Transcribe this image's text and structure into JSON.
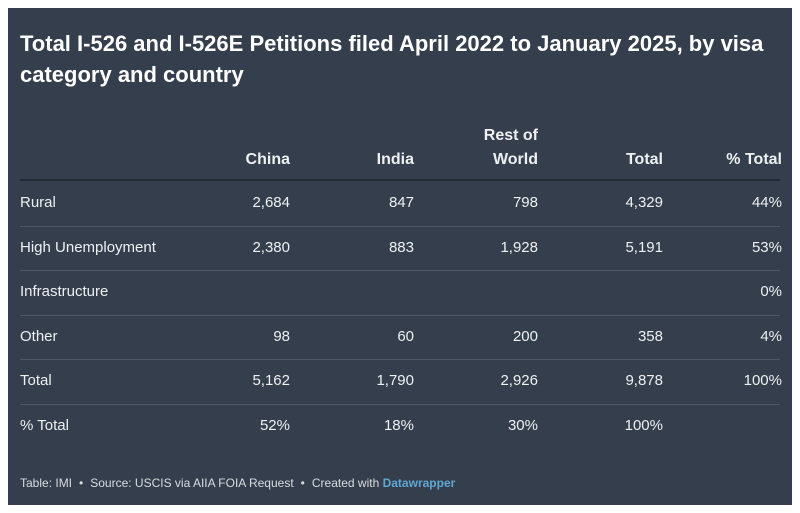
{
  "title": "Total I-526 and I-526E Petitions filed April 2022 to January 2025, by visa category and country",
  "table": {
    "header": [
      "China",
      "India",
      "Rest of World",
      "Total",
      "% Total"
    ],
    "rows": [
      [
        "Rural",
        "2,684",
        "847",
        "798",
        "4,329",
        "44%"
      ],
      [
        "High Unemployment",
        "2,380",
        "883",
        "1,928",
        "5,191",
        "53%"
      ],
      [
        "Infrastructure",
        null,
        null,
        null,
        null,
        "0%"
      ],
      [
        "Other",
        "98",
        "60",
        "200",
        "358",
        "4%"
      ],
      [
        "Total",
        "5,162",
        "1,790",
        "2,926",
        "9,878",
        "100%"
      ],
      [
        "% Total",
        "52%",
        "18%",
        "30%",
        "100%",
        null
      ]
    ]
  },
  "footer": {
    "table": "Table: IMI",
    "source": "Source: USCIS via AIIA FOIA Request",
    "created": "Created with",
    "tool": "Datawrapper"
  }
}
